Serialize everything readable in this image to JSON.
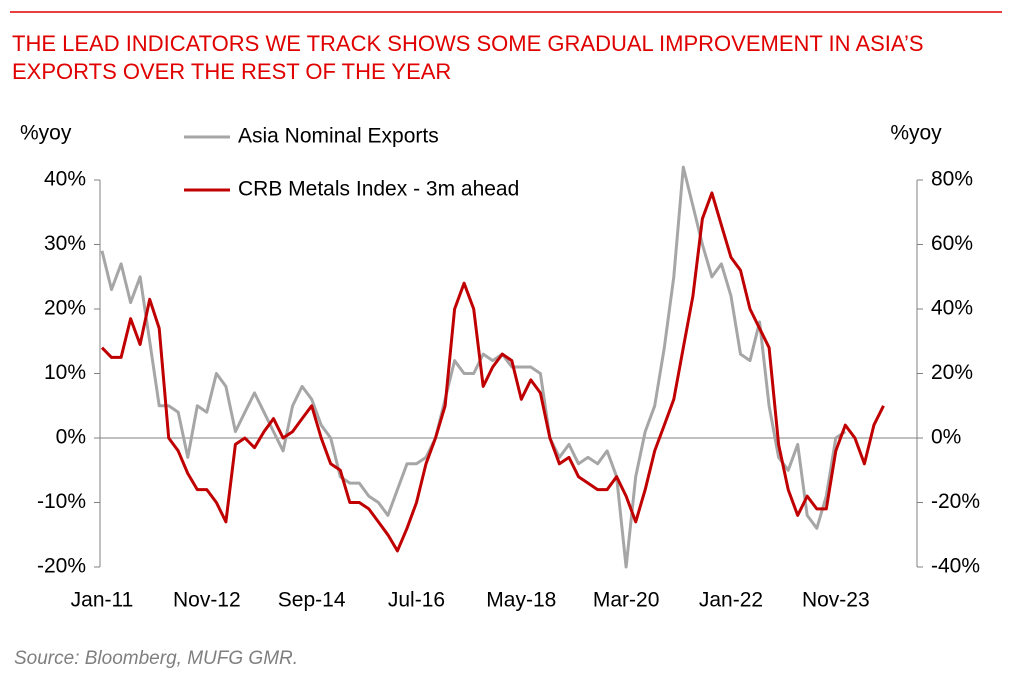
{
  "chart_data": {
    "type": "line",
    "title": "THE LEAD INDICATORS WE TRACK SHOWS SOME GRADUAL IMPROVEMENT IN ASIA’S EXPORTS OVER THE REST OF THE YEAR",
    "ylabel": "%yoy",
    "y2label": "%yoy",
    "source": "Source: Bloomberg, MUFG GMR.",
    "categories": [
      "Jan-11",
      null,
      null,
      null,
      null,
      null,
      null,
      null,
      null,
      null,
      null,
      "Nov-12",
      null,
      null,
      null,
      null,
      null,
      null,
      null,
      null,
      null,
      null,
      "Sep-14",
      null,
      null,
      null,
      null,
      null,
      null,
      null,
      null,
      null,
      null,
      "Jul-16",
      null,
      null,
      null,
      null,
      null,
      null,
      null,
      null,
      null,
      null,
      "May-18",
      null,
      null,
      null,
      null,
      null,
      null,
      null,
      null,
      null,
      null,
      "Mar-20",
      null,
      null,
      null,
      null,
      null,
      null,
      null,
      null,
      null,
      null,
      "Jan-22",
      null,
      null,
      null,
      null,
      null,
      null,
      null,
      null,
      null,
      null,
      "Nov-23",
      null,
      null,
      null,
      null,
      null
    ],
    "series": [
      {
        "name": "Asia Nominal Exports",
        "color": "#a6a6a6",
        "axis": "y",
        "values": [
          29,
          23,
          27,
          21,
          25,
          15,
          5,
          5,
          4,
          -3,
          5,
          4,
          10,
          8,
          1,
          4,
          7,
          4,
          1,
          -2,
          5,
          8,
          6,
          2,
          0,
          -6,
          -7,
          -7,
          -9,
          -10,
          -12,
          -8,
          -4,
          -4,
          -3,
          0,
          6,
          12,
          10,
          10,
          13,
          12,
          13,
          11,
          11,
          11,
          10,
          0,
          -3,
          -1,
          -4,
          -3,
          -4,
          -2,
          -6,
          -20,
          -6,
          1,
          5,
          14,
          25,
          42,
          36,
          30,
          25,
          27,
          22,
          13,
          12,
          18,
          5,
          -3,
          -5,
          -1,
          -12,
          -14,
          -9,
          0,
          1,
          null,
          null,
          null,
          null
        ]
      },
      {
        "name": "CRB Metals Index - 3m ahead",
        "color": "#c00000",
        "axis": "y2",
        "values": [
          28,
          25,
          25,
          37,
          29,
          43,
          34,
          0,
          -4,
          -11,
          -16,
          -16,
          -20,
          -26,
          -2,
          0,
          -3,
          2,
          6,
          0,
          2,
          6,
          10,
          0,
          -8,
          -10,
          -20,
          -20,
          -22,
          -26,
          -30,
          -35,
          -28,
          -20,
          -8,
          0,
          10,
          40,
          48,
          40,
          16,
          22,
          26,
          24,
          12,
          18,
          14,
          0,
          -8,
          -6,
          -12,
          -14,
          -16,
          -16,
          -12,
          -18,
          -26,
          -16,
          -4,
          4,
          12,
          28,
          44,
          68,
          76,
          66,
          56,
          52,
          40,
          34,
          28,
          -2,
          -16,
          -24,
          -18,
          -22,
          -22,
          -4,
          4,
          0,
          -8,
          4,
          10
        ]
      }
    ],
    "ylim": [
      -20,
      40
    ],
    "yticks": [
      {
        "value": -20,
        "label": "-20%"
      },
      {
        "value": -10,
        "label": "-10%"
      },
      {
        "value": 0,
        "label": "0%"
      },
      {
        "value": 10,
        "label": "10%"
      },
      {
        "value": 20,
        "label": "20%"
      },
      {
        "value": 30,
        "label": "30%"
      },
      {
        "value": 40,
        "label": "40%"
      }
    ],
    "y2lim": [
      -40,
      80
    ],
    "y2ticks": [
      {
        "value": -40,
        "label": "-40%"
      },
      {
        "value": -20,
        "label": "-20%"
      },
      {
        "value": 0,
        "label": "0%"
      },
      {
        "value": 20,
        "label": "20%"
      },
      {
        "value": 40,
        "label": "40%"
      },
      {
        "value": 60,
        "label": "60%"
      },
      {
        "value": 80,
        "label": "80%"
      }
    ]
  }
}
